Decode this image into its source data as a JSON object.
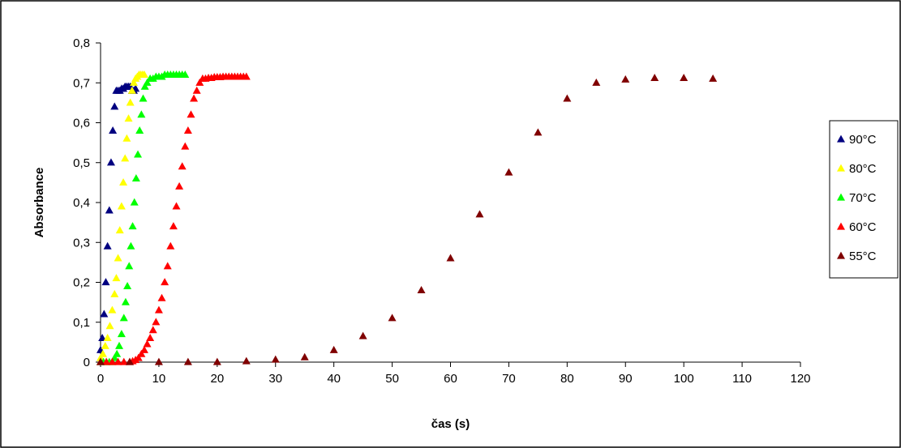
{
  "chart_data": {
    "type": "scatter",
    "xlabel": "čas (s)",
    "ylabel": "Absorbance",
    "xlim": [
      0,
      120
    ],
    "ylim": [
      0,
      0.8
    ],
    "x_ticks": [
      0,
      10,
      20,
      30,
      40,
      50,
      60,
      70,
      80,
      90,
      100,
      110,
      120
    ],
    "x_tick_labels": [
      "0",
      "10",
      "20",
      "30",
      "40",
      "50",
      "60",
      "70",
      "80",
      "90",
      "100",
      "110",
      "120"
    ],
    "y_ticks": [
      0,
      0.1,
      0.2,
      0.3,
      0.4,
      0.5,
      0.6,
      0.7,
      0.8
    ],
    "y_tick_labels": [
      "0",
      "0,1",
      "0,2",
      "0,3",
      "0,4",
      "0,5",
      "0,6",
      "0,7",
      "0,8"
    ],
    "grid": false,
    "legend_position": "right",
    "marker": "triangle",
    "series": [
      {
        "name": "90°C",
        "color": "#000080",
        "points": [
          [
            0,
            0.03
          ],
          [
            0.3,
            0.06
          ],
          [
            0.6,
            0.12
          ],
          [
            0.9,
            0.2
          ],
          [
            1.2,
            0.29
          ],
          [
            1.5,
            0.38
          ],
          [
            1.8,
            0.5
          ],
          [
            2.1,
            0.58
          ],
          [
            2.4,
            0.64
          ],
          [
            2.7,
            0.68
          ],
          [
            3.0,
            0.68
          ],
          [
            3.3,
            0.68
          ],
          [
            3.6,
            0.685
          ],
          [
            3.9,
            0.685
          ],
          [
            4.2,
            0.69
          ],
          [
            4.5,
            0.69
          ],
          [
            4.8,
            0.69
          ],
          [
            5.1,
            0.69
          ],
          [
            5.4,
            0.68
          ],
          [
            5.7,
            0.68
          ],
          [
            6.0,
            0.685
          ]
        ]
      },
      {
        "name": "80°C",
        "color": "#FFFF00",
        "points": [
          [
            0,
            0.01
          ],
          [
            0.4,
            0.02
          ],
          [
            0.8,
            0.04
          ],
          [
            1.2,
            0.06
          ],
          [
            1.6,
            0.09
          ],
          [
            2.0,
            0.13
          ],
          [
            2.4,
            0.17
          ],
          [
            2.7,
            0.21
          ],
          [
            3.0,
            0.26
          ],
          [
            3.3,
            0.33
          ],
          [
            3.6,
            0.39
          ],
          [
            3.9,
            0.45
          ],
          [
            4.2,
            0.51
          ],
          [
            4.5,
            0.56
          ],
          [
            4.8,
            0.61
          ],
          [
            5.1,
            0.65
          ],
          [
            5.4,
            0.68
          ],
          [
            5.7,
            0.7
          ],
          [
            6.0,
            0.71
          ],
          [
            6.3,
            0.715
          ],
          [
            6.6,
            0.72
          ],
          [
            6.9,
            0.72
          ],
          [
            7.2,
            0.72
          ],
          [
            7.5,
            0.72
          ]
        ]
      },
      {
        "name": "70°C",
        "color": "#00FF00",
        "points": [
          [
            0,
            0
          ],
          [
            0.5,
            0
          ],
          [
            1.0,
            0
          ],
          [
            1.5,
            0
          ],
          [
            2.0,
            0
          ],
          [
            2.4,
            0.01
          ],
          [
            2.8,
            0.02
          ],
          [
            3.2,
            0.04
          ],
          [
            3.6,
            0.07
          ],
          [
            4.0,
            0.11
          ],
          [
            4.3,
            0.15
          ],
          [
            4.6,
            0.19
          ],
          [
            4.9,
            0.24
          ],
          [
            5.2,
            0.29
          ],
          [
            5.5,
            0.34
          ],
          [
            5.8,
            0.4
          ],
          [
            6.1,
            0.46
          ],
          [
            6.4,
            0.52
          ],
          [
            6.7,
            0.58
          ],
          [
            7.0,
            0.62
          ],
          [
            7.3,
            0.66
          ],
          [
            7.6,
            0.69
          ],
          [
            8.0,
            0.7
          ],
          [
            8.5,
            0.71
          ],
          [
            9.0,
            0.71
          ],
          [
            9.5,
            0.715
          ],
          [
            10.0,
            0.715
          ],
          [
            10.5,
            0.715
          ],
          [
            11.0,
            0.72
          ],
          [
            11.5,
            0.72
          ],
          [
            12.0,
            0.72
          ],
          [
            12.5,
            0.72
          ],
          [
            13.0,
            0.72
          ],
          [
            13.5,
            0.72
          ],
          [
            14.0,
            0.72
          ],
          [
            14.5,
            0.72
          ]
        ]
      },
      {
        "name": "60°C",
        "color": "#FF0000",
        "points": [
          [
            0,
            0
          ],
          [
            1,
            0
          ],
          [
            2,
            0
          ],
          [
            3,
            0
          ],
          [
            4,
            0
          ],
          [
            5,
            0
          ],
          [
            5.5,
            0.002
          ],
          [
            6.0,
            0.005
          ],
          [
            6.5,
            0.01
          ],
          [
            7.0,
            0.02
          ],
          [
            7.5,
            0.03
          ],
          [
            8.0,
            0.045
          ],
          [
            8.5,
            0.06
          ],
          [
            9.0,
            0.08
          ],
          [
            9.5,
            0.1
          ],
          [
            10.0,
            0.13
          ],
          [
            10.5,
            0.16
          ],
          [
            11.0,
            0.2
          ],
          [
            11.5,
            0.24
          ],
          [
            12.0,
            0.29
          ],
          [
            12.5,
            0.34
          ],
          [
            13.0,
            0.39
          ],
          [
            13.5,
            0.44
          ],
          [
            14.0,
            0.49
          ],
          [
            14.5,
            0.54
          ],
          [
            15.0,
            0.58
          ],
          [
            15.5,
            0.62
          ],
          [
            16.0,
            0.66
          ],
          [
            16.5,
            0.68
          ],
          [
            17.0,
            0.7
          ],
          [
            17.5,
            0.71
          ],
          [
            18.0,
            0.71
          ],
          [
            18.5,
            0.712
          ],
          [
            19.0,
            0.712
          ],
          [
            19.5,
            0.714
          ],
          [
            20.0,
            0.714
          ],
          [
            20.5,
            0.714
          ],
          [
            21.0,
            0.715
          ],
          [
            21.5,
            0.715
          ],
          [
            22.0,
            0.715
          ],
          [
            22.5,
            0.715
          ],
          [
            23.0,
            0.715
          ],
          [
            23.5,
            0.715
          ],
          [
            24.0,
            0.715
          ],
          [
            24.5,
            0.715
          ],
          [
            25.0,
            0.715
          ]
        ]
      },
      {
        "name": "55°C",
        "color": "#800000",
        "points": [
          [
            0,
            0
          ],
          [
            5,
            0
          ],
          [
            10,
            0
          ],
          [
            15,
            0
          ],
          [
            20,
            0
          ],
          [
            25,
            0.002
          ],
          [
            30,
            0.006
          ],
          [
            35,
            0.012
          ],
          [
            40,
            0.03
          ],
          [
            45,
            0.065
          ],
          [
            50,
            0.11
          ],
          [
            55,
            0.18
          ],
          [
            60,
            0.26
          ],
          [
            65,
            0.37
          ],
          [
            70,
            0.475
          ],
          [
            75,
            0.575
          ],
          [
            80,
            0.66
          ],
          [
            85,
            0.7
          ],
          [
            90,
            0.708
          ],
          [
            95,
            0.712
          ],
          [
            100,
            0.712
          ],
          [
            105,
            0.71
          ]
        ]
      }
    ]
  }
}
